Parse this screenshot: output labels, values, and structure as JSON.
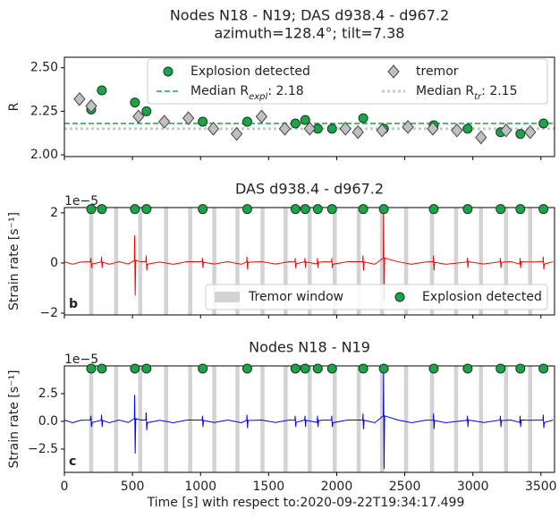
{
  "chart_data": [
    {
      "type": "scatter",
      "title": [
        "Nodes N18 - N19; DAS d938.4 - d967.2",
        "azimuth=128.4°; tilt=7.38"
      ],
      "ylabel": "R",
      "xlim": [
        0,
        3600
      ],
      "xticks": [
        0,
        500,
        1000,
        1500,
        2000,
        2500,
        3000,
        3500
      ],
      "xtick_labels": false,
      "ylim": [
        1.99,
        2.56
      ],
      "yticks": [
        {
          "value": 2,
          "label": "2.00"
        },
        {
          "value": 2.25,
          "label": "2.25"
        },
        {
          "value": 2.5,
          "label": "2.50"
        }
      ],
      "series": [
        {
          "name": "Explosion detected",
          "color": "#1fa34a",
          "marker": "circle",
          "x": [
            197,
            275,
            518,
            603,
            1016,
            1343,
            1697,
            1769,
            1861,
            1966,
            2195,
            2346,
            2713,
            2962,
            3204,
            3349,
            3519
          ],
          "values": [
            2.26,
            2.37,
            2.3,
            2.25,
            2.19,
            2.19,
            2.18,
            2.2,
            2.15,
            2.15,
            2.21,
            2.15,
            2.17,
            2.15,
            2.13,
            2.12,
            2.18
          ]
        },
        {
          "name": "tremor",
          "color": "#c0c0c0",
          "marker": "diamond",
          "x": [
            111,
            197,
            544,
            734,
            911,
            1094,
            1265,
            1448,
            1619,
            1802,
            2064,
            2156,
            2333,
            2523,
            2706,
            2883,
            3060,
            3244,
            3421
          ],
          "values": [
            2.32,
            2.28,
            2.22,
            2.19,
            2.21,
            2.15,
            2.12,
            2.22,
            2.15,
            2.15,
            2.15,
            2.13,
            2.14,
            2.16,
            2.15,
            2.14,
            2.1,
            2.14,
            2.13
          ]
        }
      ],
      "hlines": [
        {
          "label": "Median R",
          "sub": "expl",
          "suffix": ": 2.18",
          "value": 2.18,
          "color": "#1fa34a",
          "style": "dashed"
        },
        {
          "label": "Median R",
          "sub": "tr",
          "suffix": ": 2.15",
          "value": 2.15,
          "color": "#c8c8c8",
          "style": "dotted"
        }
      ],
      "legend": "upper right"
    },
    {
      "type": "line",
      "title": "DAS d938.4 - d967.2",
      "ylabel": "Strain rate [s⁻¹]",
      "offset_text": "1e−5",
      "panel_label": "b",
      "xlim": [
        0,
        3600
      ],
      "xticks": [
        0,
        500,
        1000,
        1500,
        2000,
        2500,
        3000,
        3500
      ],
      "xtick_labels": false,
      "ylim": [
        -2.07,
        2.21
      ],
      "yticks": [
        {
          "value": -2,
          "label": "−2"
        },
        0,
        2
      ],
      "tremor_windows": {
        "name": "Tremor window",
        "color": "#d3d3d3",
        "x": [
          [
            182,
            212
          ],
          [
            365,
            395
          ],
          [
            542,
            572
          ],
          [
            732,
            762
          ],
          [
            909,
            939
          ],
          [
            1086,
            1116
          ],
          [
            1256,
            1286
          ],
          [
            1440,
            1470
          ],
          [
            1610,
            1640
          ],
          [
            1787,
            1817
          ],
          [
            1971,
            2001
          ],
          [
            2147,
            2177
          ],
          [
            2318,
            2348
          ],
          [
            2495,
            2525
          ],
          [
            2685,
            2715
          ],
          [
            2862,
            2892
          ],
          [
            3045,
            3075
          ],
          [
            3229,
            3259
          ],
          [
            3406,
            3436
          ]
        ]
      },
      "detections": {
        "name": "Explosion detected",
        "color": "#1fa34a",
        "x": [
          197,
          275,
          518,
          603,
          1016,
          1343,
          1697,
          1769,
          1861,
          1966,
          2195,
          2346,
          2713,
          2962,
          3204,
          3349,
          3519
        ],
        "y": 2.15
      },
      "series": [
        {
          "color": "#ff0000",
          "x": [
            0,
            60,
            120,
            190,
            195,
            199,
            203,
            270,
            273,
            277,
            281,
            330,
            400,
            470,
            514,
            516,
            520,
            524,
            560,
            598,
            601,
            605,
            609,
            700,
            800,
            900,
            1012,
            1014,
            1018,
            1022,
            1100,
            1200,
            1300,
            1339,
            1341,
            1345,
            1349,
            1450,
            1550,
            1650,
            1693,
            1695,
            1699,
            1703,
            1765,
            1767,
            1771,
            1775,
            1857,
            1859,
            1863,
            1867,
            1920,
            1962,
            1964,
            1968,
            1972,
            2080,
            2191,
            2193,
            2197,
            2201,
            2280,
            2342,
            2344,
            2348,
            2352,
            2450,
            2550,
            2650,
            2709,
            2711,
            2715,
            2719,
            2800,
            2958,
            2960,
            2964,
            2968,
            3080,
            3200,
            3202,
            3206,
            3210,
            3280,
            3345,
            3347,
            3351,
            3355,
            3430,
            3515,
            3517,
            3521,
            3525,
            3590
          ],
          "values": [
            0.05,
            -0.05,
            0.04,
            0.05,
            0.2,
            -0.2,
            -0.04,
            0.04,
            0.25,
            -0.2,
            0.03,
            -0.05,
            0.05,
            -0.04,
            0.1,
            1.1,
            -1.3,
            0.1,
            0.05,
            0.05,
            0.3,
            -0.3,
            -0.05,
            0.04,
            -0.05,
            0.05,
            0.05,
            0.2,
            -0.2,
            0.03,
            -0.04,
            0.05,
            -0.05,
            0.04,
            0.25,
            -0.25,
            0.03,
            0.05,
            -0.04,
            0.05,
            0.04,
            0.2,
            -0.2,
            -0.03,
            0.05,
            0.2,
            -0.2,
            0.04,
            -0.04,
            0.2,
            -0.2,
            0.03,
            0.05,
            0.04,
            0.2,
            -0.2,
            -0.05,
            0.05,
            0.05,
            0.3,
            -0.3,
            0.04,
            -0.05,
            0.2,
            2.1,
            -1.5,
            0.2,
            0.05,
            -0.05,
            0.04,
            0.05,
            0.3,
            -0.3,
            0.03,
            -0.05,
            0.04,
            0.2,
            -0.2,
            0.05,
            -0.04,
            0.05,
            0.2,
            -0.2,
            0.03,
            0.05,
            -0.04,
            0.2,
            -0.2,
            0.05,
            0.04,
            0.05,
            0.25,
            -0.25,
            -0.04,
            0.05
          ]
        }
      ],
      "legend": "lower right"
    },
    {
      "type": "line",
      "title": "Nodes N18 - N19",
      "ylabel": "Strain rate [s⁻¹]",
      "offset_text": "1e−5",
      "panel_label": "c",
      "xlabel": "Time [s] with respect to:2020-09-22T19:34:17.499",
      "xlim": [
        0,
        3600
      ],
      "xticks": [
        0,
        500,
        1000,
        1500,
        2000,
        2500,
        3000,
        3500
      ],
      "xtick_labels": true,
      "ylim": [
        -4.6,
        5.0
      ],
      "yticks": [
        {
          "value": -2.5,
          "label": "−2.5"
        },
        {
          "value": 0,
          "label": "0.0"
        },
        {
          "value": 2.5,
          "label": "2.5"
        }
      ],
      "tremor_windows": {
        "color": "#d3d3d3",
        "x": [
          [
            182,
            212
          ],
          [
            365,
            395
          ],
          [
            542,
            572
          ],
          [
            732,
            762
          ],
          [
            909,
            939
          ],
          [
            1086,
            1116
          ],
          [
            1256,
            1286
          ],
          [
            1440,
            1470
          ],
          [
            1610,
            1640
          ],
          [
            1787,
            1817
          ],
          [
            1971,
            2001
          ],
          [
            2147,
            2177
          ],
          [
            2318,
            2348
          ],
          [
            2495,
            2525
          ],
          [
            2685,
            2715
          ],
          [
            2862,
            2892
          ],
          [
            3045,
            3075
          ],
          [
            3229,
            3259
          ],
          [
            3406,
            3436
          ]
        ]
      },
      "detections": {
        "color": "#1fa34a",
        "x": [
          197,
          275,
          518,
          603,
          1016,
          1343,
          1697,
          1769,
          1861,
          1966,
          2195,
          2346,
          2713,
          2962,
          3204,
          3349,
          3519
        ],
        "y": 4.76
      },
      "series": [
        {
          "color": "#0000ff",
          "x": [
            0,
            60,
            120,
            190,
            195,
            199,
            203,
            270,
            273,
            277,
            281,
            330,
            400,
            470,
            514,
            516,
            520,
            524,
            560,
            598,
            601,
            605,
            609,
            700,
            800,
            900,
            1012,
            1014,
            1018,
            1022,
            1100,
            1200,
            1300,
            1339,
            1341,
            1345,
            1349,
            1450,
            1550,
            1650,
            1693,
            1695,
            1699,
            1703,
            1765,
            1767,
            1771,
            1775,
            1857,
            1859,
            1863,
            1867,
            1920,
            1962,
            1964,
            1968,
            1972,
            2080,
            2191,
            2193,
            2197,
            2201,
            2280,
            2342,
            2344,
            2348,
            2352,
            2450,
            2550,
            2650,
            2709,
            2711,
            2715,
            2719,
            2800,
            2958,
            2960,
            2964,
            2968,
            3080,
            3200,
            3202,
            3206,
            3210,
            3280,
            3345,
            3347,
            3351,
            3355,
            3430,
            3515,
            3517,
            3521,
            3525,
            3590
          ],
          "values": [
            0.12,
            -0.12,
            0.1,
            0.12,
            0.5,
            -0.5,
            -0.1,
            0.1,
            0.6,
            -0.5,
            0.08,
            -0.12,
            0.12,
            -0.1,
            0.25,
            2.4,
            -2.9,
            0.25,
            0.12,
            0.12,
            0.8,
            -0.8,
            -0.12,
            0.1,
            -0.12,
            0.12,
            0.12,
            0.5,
            -0.5,
            0.08,
            -0.1,
            0.12,
            -0.12,
            0.1,
            0.6,
            -0.6,
            0.08,
            0.12,
            -0.1,
            0.12,
            0.1,
            0.5,
            -0.5,
            -0.08,
            0.12,
            0.5,
            -0.5,
            0.1,
            -0.1,
            0.5,
            -0.5,
            0.08,
            0.12,
            0.1,
            0.5,
            -0.5,
            -0.12,
            0.12,
            0.12,
            0.7,
            -0.7,
            0.1,
            -0.12,
            0.5,
            4.5,
            -4.3,
            0.5,
            0.12,
            -0.12,
            0.1,
            0.12,
            0.7,
            -0.7,
            0.08,
            -0.12,
            0.1,
            0.5,
            -0.5,
            0.12,
            -0.1,
            0.12,
            0.5,
            -0.5,
            0.08,
            0.12,
            -0.1,
            0.5,
            -0.5,
            0.12,
            0.1,
            0.12,
            0.6,
            -0.6,
            -0.1,
            0.12
          ]
        }
      ],
      "legend": null
    }
  ]
}
